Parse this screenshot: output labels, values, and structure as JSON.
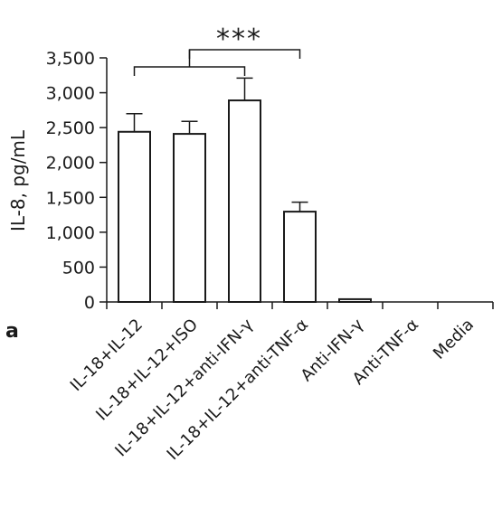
{
  "panel_label": "a",
  "chart_data": {
    "type": "bar",
    "title": "",
    "xlabel": "",
    "ylabel": "IL-8, pg/mL",
    "ylim": [
      0,
      3500
    ],
    "yticks": [
      0,
      500,
      1000,
      1500,
      2000,
      2500,
      3000,
      3500
    ],
    "ytick_labels": [
      "0",
      "500",
      "1,000",
      "1,500",
      "2,000",
      "2,500",
      "3,000",
      "3,500"
    ],
    "categories": [
      "IL-18+IL-12",
      "IL-18+IL-12+ISO",
      "IL-18+IL-12+anti-IFN-γ",
      "IL-18+IL-12+anti-TNF-α",
      "Anti-IFN-γ",
      "Anti-TNF-α",
      "Media"
    ],
    "values": [
      2440,
      2410,
      2890,
      1295,
      40,
      0,
      0
    ],
    "errors": [
      260,
      180,
      320,
      135,
      0,
      0,
      0
    ],
    "significance": {
      "label": "***",
      "left_group": [
        0,
        2
      ],
      "right_group": [
        1,
        3
      ]
    },
    "bar_color": "#ffffff",
    "edge_color": "#1a1a1a",
    "grid": false,
    "legend": "none"
  }
}
